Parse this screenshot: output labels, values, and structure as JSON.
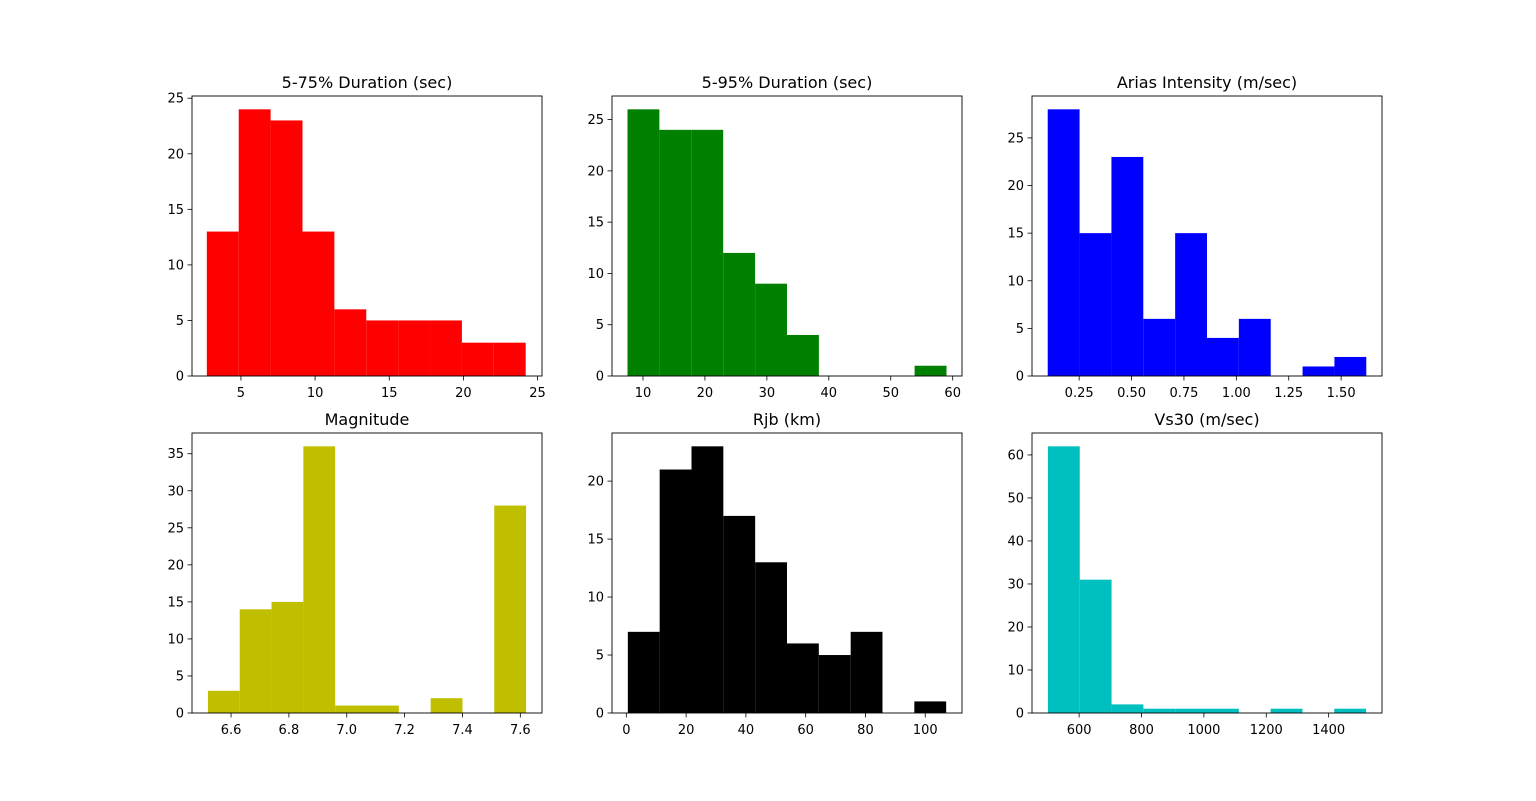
{
  "chart_data": [
    {
      "type": "bar",
      "title": "5-75% Duration (sec)",
      "color": "#ff0000",
      "bin_edges": [
        2.7,
        4.85,
        7.0,
        9.15,
        11.3,
        13.45,
        15.6,
        17.75,
        19.9,
        22.05,
        24.2
      ],
      "values": [
        13,
        24,
        23,
        13,
        6,
        5,
        5,
        5,
        3,
        3
      ],
      "xlim": [
        1.7,
        25.3
      ],
      "ylim": [
        0,
        25.2
      ],
      "xticks": [
        5,
        10,
        15,
        20,
        25
      ],
      "yticks": [
        0,
        5,
        10,
        15,
        20,
        25
      ]
    },
    {
      "type": "bar",
      "title": "5-95% Duration (sec)",
      "color": "#008000",
      "bin_edges": [
        7.5,
        12.65,
        17.8,
        22.95,
        28.1,
        33.25,
        38.4,
        43.55,
        48.7,
        53.85,
        59.0
      ],
      "values": [
        26,
        24,
        24,
        12,
        9,
        4,
        0,
        0,
        0,
        1
      ],
      "xlim": [
        5.0,
        61.5
      ],
      "ylim": [
        0,
        27.3
      ],
      "xticks": [
        10,
        20,
        30,
        40,
        50,
        60
      ],
      "yticks": [
        0,
        5,
        10,
        15,
        20,
        25
      ]
    },
    {
      "type": "bar",
      "title": "Arias Intensity (m/sec)",
      "color": "#0000ff",
      "bin_edges": [
        0.1,
        0.252,
        0.404,
        0.556,
        0.708,
        0.86,
        1.012,
        1.164,
        1.316,
        1.468,
        1.62
      ],
      "values": [
        28,
        15,
        23,
        6,
        15,
        4,
        6,
        0,
        1,
        2
      ],
      "xlim": [
        0.025,
        1.695
      ],
      "ylim": [
        0,
        29.4
      ],
      "xticks": [
        0.25,
        0.5,
        0.75,
        1.0,
        1.25,
        1.5
      ],
      "xtick_labels": [
        "0.25",
        "0.50",
        "0.75",
        "1.00",
        "1.25",
        "1.50"
      ],
      "yticks": [
        0,
        5,
        10,
        15,
        20,
        25
      ]
    },
    {
      "type": "bar",
      "title": "Magnitude",
      "color": "#bfbf00",
      "bin_edges": [
        6.52,
        6.63,
        6.74,
        6.85,
        6.96,
        7.07,
        7.18,
        7.29,
        7.4,
        7.51,
        7.62
      ],
      "values": [
        3,
        14,
        15,
        36,
        1,
        1,
        0,
        2,
        0,
        28
      ],
      "xlim": [
        6.465,
        7.675
      ],
      "ylim": [
        0,
        37.8
      ],
      "xticks": [
        6.6,
        6.8,
        7.0,
        7.2,
        7.4,
        7.6
      ],
      "xtick_labels": [
        "6.6",
        "6.8",
        "7.0",
        "7.2",
        "7.4",
        "7.6"
      ],
      "yticks": [
        0,
        5,
        10,
        15,
        20,
        25,
        30,
        35
      ]
    },
    {
      "type": "bar",
      "title": "Rjb (km)",
      "color": "#000000",
      "bin_edges": [
        0.5,
        11.15,
        21.8,
        32.45,
        43.1,
        53.75,
        64.4,
        75.05,
        85.7,
        96.35,
        107.0
      ],
      "values": [
        7,
        21,
        23,
        17,
        13,
        6,
        5,
        7,
        0,
        1
      ],
      "xlim": [
        -4.8,
        112.3
      ],
      "ylim": [
        0,
        24.15
      ],
      "xticks": [
        0,
        20,
        40,
        60,
        80,
        100
      ],
      "yticks": [
        0,
        5,
        10,
        15,
        20
      ]
    },
    {
      "type": "bar",
      "title": "Vs30 (m/sec)",
      "color": "#00bfbf",
      "bin_edges": [
        500,
        602,
        704,
        806,
        908,
        1010,
        1112,
        1214,
        1316,
        1418,
        1520
      ],
      "values": [
        62,
        31,
        2,
        1,
        1,
        1,
        0,
        1,
        0,
        1
      ],
      "xlim": [
        449,
        1571
      ],
      "ylim": [
        0,
        65.1
      ],
      "xticks": [
        600,
        800,
        1000,
        1200,
        1400
      ],
      "yticks": [
        0,
        10,
        20,
        30,
        40,
        50,
        60
      ]
    }
  ]
}
